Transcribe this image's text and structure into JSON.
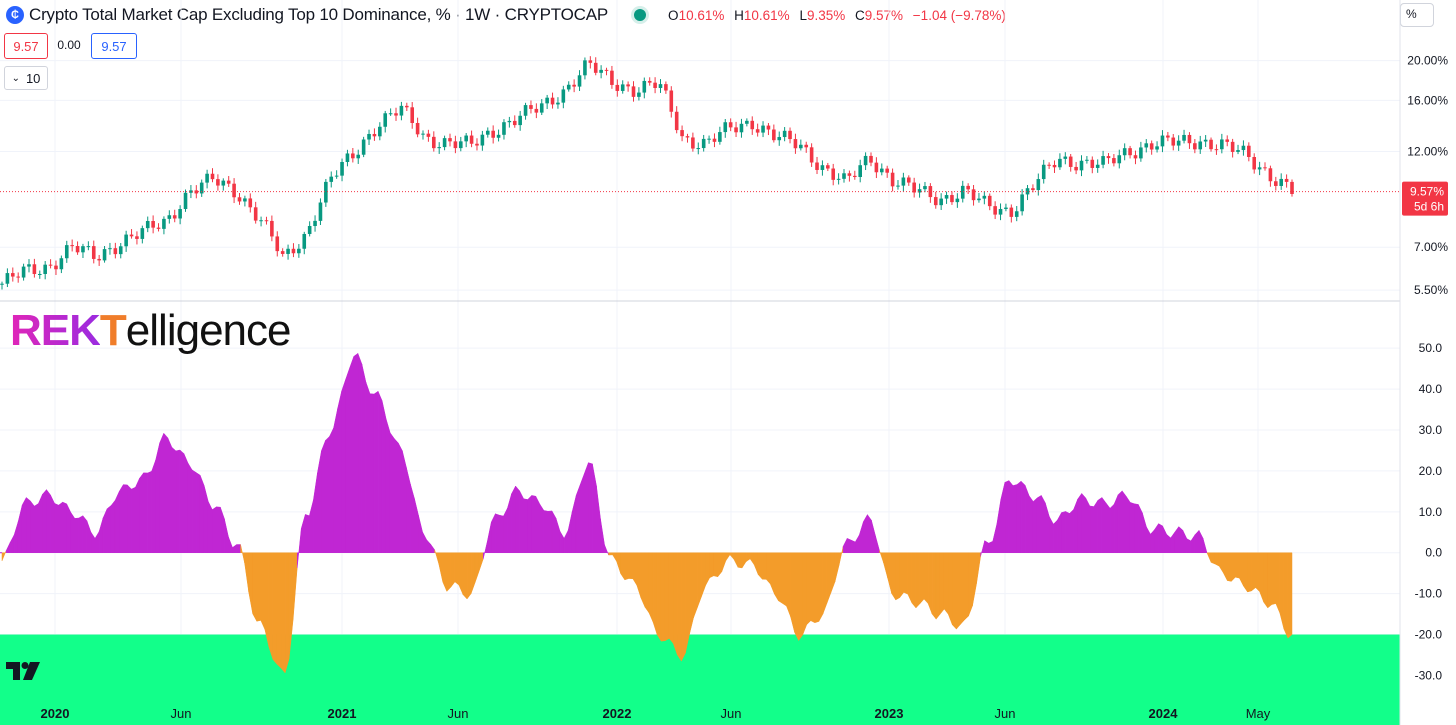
{
  "header": {
    "symbol_icon": "crypto-icon",
    "title": "Crypto Total Market Cap Excluding Top 10 Dominance, % · 1W · CRYPTOCAP",
    "ohlc": [
      {
        "key": "O",
        "value": "10.61%"
      },
      {
        "key": "H",
        "value": "10.61%"
      },
      {
        "key": "L",
        "value": "9.35%"
      },
      {
        "key": "C",
        "value": "9.57%"
      },
      {
        "key": "",
        "value": "−1.04 (−9.78%)"
      }
    ],
    "price_sell": "9.57",
    "spread": "0.00",
    "price_buy": "9.57",
    "indicators_toggle": "10",
    "scale_mode": "%"
  },
  "price_axis": {
    "ticks": [
      "20.00%",
      "16.00%",
      "12.00%",
      "9.57%",
      "7.00%",
      "5.50%"
    ],
    "last_price": "9.57%",
    "countdown": "5d 6h"
  },
  "osc_axis": {
    "ticks": [
      "50.0",
      "40.0",
      "30.0",
      "20.0",
      "10.0",
      "0.0",
      "-10.0",
      "-20.0",
      "-30.0"
    ]
  },
  "time_axis": {
    "labels": [
      "2020",
      "Jun",
      "2021",
      "Jun",
      "2022",
      "Jun",
      "2023",
      "Jun",
      "2024",
      "May"
    ]
  },
  "watermark": {
    "part1": "REK",
    "part2": "T",
    "part3": "elligence"
  },
  "colors": {
    "up": "#089981",
    "down": "#f23645",
    "positive_area": "#c026d3",
    "negative_area": "#f39c2a",
    "zone": "#12ff8a",
    "grid": "#f0f3fa"
  },
  "chart_data": [
    {
      "type": "line",
      "title": "Crypto Total Market Cap Excluding Top 10 Dominance, %",
      "description_note": "weekly candlestick; values are approximate closes",
      "x": [
        "2019-11",
        "2019-12",
        "2020-01",
        "2020-02",
        "2020-03",
        "2020-04",
        "2020-05",
        "2020-06",
        "2020-07",
        "2020-08",
        "2020-09",
        "2020-10",
        "2020-11",
        "2020-12",
        "2021-01",
        "2021-02",
        "2021-03",
        "2021-04",
        "2021-05",
        "2021-06",
        "2021-07",
        "2021-08",
        "2021-09",
        "2021-10",
        "2021-11",
        "2021-12",
        "2022-01",
        "2022-02",
        "2022-03",
        "2022-04",
        "2022-05",
        "2022-06",
        "2022-07",
        "2022-08",
        "2022-09",
        "2022-10",
        "2022-11",
        "2022-12",
        "2023-01",
        "2023-02",
        "2023-03",
        "2023-04",
        "2023-05",
        "2023-06",
        "2023-07",
        "2023-08",
        "2023-09",
        "2023-10",
        "2023-11",
        "2023-12",
        "2024-01",
        "2024-02",
        "2024-03",
        "2024-04",
        "2024-05",
        "2024-06"
      ],
      "y": [
        5.7,
        6.1,
        6.3,
        7.0,
        6.6,
        7.2,
        7.6,
        8.1,
        9.6,
        10.2,
        9.6,
        8.2,
        6.5,
        7.6,
        10.2,
        11.8,
        14.0,
        15.2,
        13.0,
        12.6,
        12.4,
        13.6,
        14.5,
        15.4,
        17.0,
        19.5,
        17.8,
        17.0,
        17.5,
        13.0,
        12.5,
        13.6,
        14.2,
        13.0,
        12.4,
        11.0,
        10.0,
        11.6,
        10.2,
        9.6,
        9.2,
        9.6,
        8.8,
        8.6,
        9.9,
        11.5,
        11.3,
        11.1,
        12.0,
        12.5,
        12.6,
        12.8,
        12.4,
        11.8,
        10.6,
        9.57
      ],
      "ylim": [
        5.0,
        21.0
      ]
    },
    {
      "type": "area",
      "title": "",
      "x": [
        "2019-11",
        "2019-12",
        "2020-01",
        "2020-02",
        "2020-03",
        "2020-04",
        "2020-05",
        "2020-06",
        "2020-07",
        "2020-08",
        "2020-09",
        "2020-10",
        "2020-11",
        "2020-12",
        "2021-01",
        "2021-02",
        "2021-03",
        "2021-04",
        "2021-05",
        "2021-06",
        "2021-07",
        "2021-08",
        "2021-09",
        "2021-10",
        "2021-11",
        "2021-12",
        "2022-01",
        "2022-02",
        "2022-03",
        "2022-04",
        "2022-05",
        "2022-06",
        "2022-07",
        "2022-08",
        "2022-09",
        "2022-10",
        "2022-11",
        "2022-12",
        "2023-01",
        "2023-02",
        "2023-03",
        "2023-04",
        "2023-05",
        "2023-06",
        "2023-07",
        "2023-08",
        "2023-09",
        "2023-10",
        "2023-11",
        "2023-12",
        "2024-01",
        "2024-02",
        "2024-03",
        "2024-04",
        "2024-05",
        "2024-06"
      ],
      "y": [
        -2,
        12,
        14,
        10,
        5,
        15,
        18,
        28,
        22,
        12,
        2,
        -18,
        -30,
        10,
        30,
        48,
        38,
        25,
        5,
        -8,
        -10,
        8,
        15,
        12,
        5,
        22,
        -2,
        -8,
        -20,
        -25,
        -8,
        -2,
        -3,
        -10,
        -20,
        -15,
        2,
        8,
        -10,
        -12,
        -15,
        -18,
        2,
        18,
        14,
        8,
        13,
        12,
        14,
        6,
        5,
        4,
        -5,
        -8,
        -12,
        -20
      ],
      "ylim": [
        -36,
        52
      ],
      "threshold": -20
    }
  ]
}
